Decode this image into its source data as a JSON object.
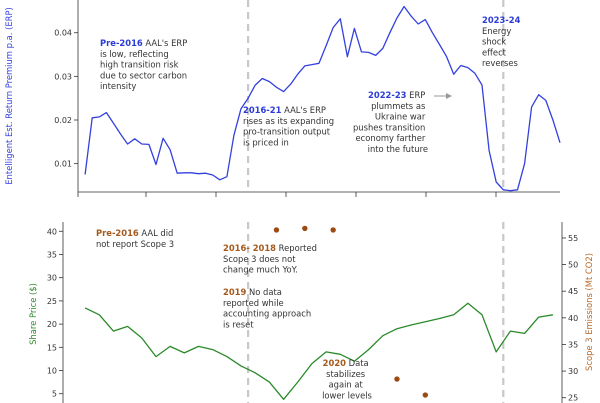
{
  "chart_data": [
    {
      "type": "line",
      "ylabel": "Entelligent Est. Return Premium p.a. (ERP)",
      "ylim": [
        0.0035,
        0.0475
      ],
      "yticks": [
        0.01,
        0.02,
        0.03,
        0.04
      ],
      "xlim": [
        0,
        68
      ],
      "dividers": [
        24,
        60
      ],
      "colors": {
        "series": "#3340e0",
        "divider": "#c8c8c8",
        "label": "#3340e0"
      },
      "series": [
        {
          "x": [
            1,
            2,
            3,
            4,
            5,
            6,
            7,
            8,
            9,
            10,
            11,
            12,
            13,
            14,
            15,
            16,
            17,
            18,
            19,
            20,
            21,
            22,
            23,
            24,
            25,
            26,
            27,
            28,
            29,
            30,
            31,
            32,
            33,
            34,
            35,
            36,
            37,
            38,
            39,
            40,
            41,
            42,
            43,
            44,
            45,
            46,
            47,
            48,
            49,
            50,
            51,
            52,
            53,
            54,
            55,
            56,
            57,
            58,
            59,
            60,
            61,
            62,
            63,
            64,
            65,
            66,
            67,
            68
          ],
          "values": [
            0.0075,
            0.0205,
            0.0207,
            0.0217,
            0.0193,
            0.0168,
            0.0145,
            0.0157,
            0.0145,
            0.0144,
            0.0098,
            0.0158,
            0.0132,
            0.0078,
            0.0079,
            0.0079,
            0.0077,
            0.0078,
            0.0074,
            0.0063,
            0.007,
            0.0165,
            0.0226,
            0.025,
            0.028,
            0.0295,
            0.0288,
            0.0275,
            0.0265,
            0.0282,
            0.0305,
            0.0324,
            0.0327,
            0.033,
            0.037,
            0.0412,
            0.0432,
            0.0345,
            0.041,
            0.0356,
            0.0355,
            0.0348,
            0.0364,
            0.04,
            0.0434,
            0.046,
            0.0438,
            0.042,
            0.043,
            0.04,
            0.0373,
            0.0345,
            0.0305,
            0.0325,
            0.032,
            0.0307,
            0.028,
            0.013,
            0.0058,
            0.004,
            0.0038,
            0.004,
            0.01,
            0.023,
            0.0258,
            0.0245,
            0.02,
            0.0148
          ]
        }
      ]
    },
    {
      "type": "line+scatter",
      "ylabel": "Share Price ($)",
      "y2label": "Scope 3 Emissions (Mt CO2)",
      "ylim": [
        3,
        42
      ],
      "yticks": [
        5,
        10,
        15,
        20,
        25,
        30,
        35,
        40
      ],
      "y2lim": [
        24,
        58
      ],
      "y2ticks": [
        25,
        30,
        35,
        40,
        45,
        50,
        55
      ],
      "xlim": [
        0,
        68
      ],
      "dividers": [
        24,
        60
      ],
      "colors": {
        "series": "#2a8a2a",
        "scatter": "#9b4a14",
        "divider": "#c8c8c8",
        "label": "#2e8b2e",
        "label2": "#b8692a"
      },
      "series": [
        {
          "x": [
            1,
            3,
            5,
            7,
            9,
            11,
            13,
            15,
            17,
            19,
            21,
            23,
            25,
            27,
            29,
            31,
            33,
            35,
            37,
            39,
            41,
            43,
            45,
            47,
            49,
            51,
            53,
            55,
            57,
            59,
            61,
            63,
            65,
            67
          ],
          "values": [
            23.5,
            22.0,
            18.5,
            19.5,
            17.0,
            13.0,
            15.2,
            13.8,
            15.2,
            14.5,
            13.0,
            11.0,
            9.5,
            7.5,
            3.8,
            7.5,
            11.5,
            14.0,
            13.5,
            12.0,
            14.5,
            17.5,
            19.0,
            19.8,
            20.5,
            21.2,
            22.0,
            24.5,
            22.0,
            14.0,
            18.5,
            18.0,
            21.5,
            22.0
          ]
        }
      ],
      "scatter": {
        "x": [
          28,
          32,
          36,
          45,
          49
        ],
        "values": [
          56.5,
          56.8,
          56.5,
          28.5,
          25.5
        ]
      },
      "annotations": [
        {
          "bold": "Pre-2016",
          "lines": [
            " AAL did",
            "not report Scope 3"
          ]
        },
        {
          "bold": "2016- 2018",
          "lines": [
            " Reported",
            "Scope 3 does not",
            "change much YoY."
          ]
        },
        {
          "bold": "2019",
          "lines": [
            " No data",
            "reported while",
            "accounting approach",
            "is reset"
          ]
        },
        {
          "bold": "2020",
          "lines": [
            " Data",
            "stabilizes",
            "again at",
            "lower levels"
          ]
        }
      ]
    }
  ],
  "top_annotations": [
    {
      "bold": "Pre-2016",
      "lines": [
        " AAL's ERP",
        "is low, reflecting",
        "high transition risk",
        "due to sector carbon",
        "intensity"
      ]
    },
    {
      "bold": "2016-21",
      "lines": [
        " AAL's ERP",
        "rises as its expanding",
        "pro-transition output",
        "is priced in"
      ]
    },
    {
      "bold": "2022-23",
      "lines": [
        " ERP",
        "plummets as",
        "Ukraine war",
        "pushes transition",
        "economy farther",
        "into the future"
      ]
    },
    {
      "bold": "2023-24",
      "lines": [
        "Energy",
        "shock",
        "effect",
        "reverses"
      ]
    }
  ]
}
